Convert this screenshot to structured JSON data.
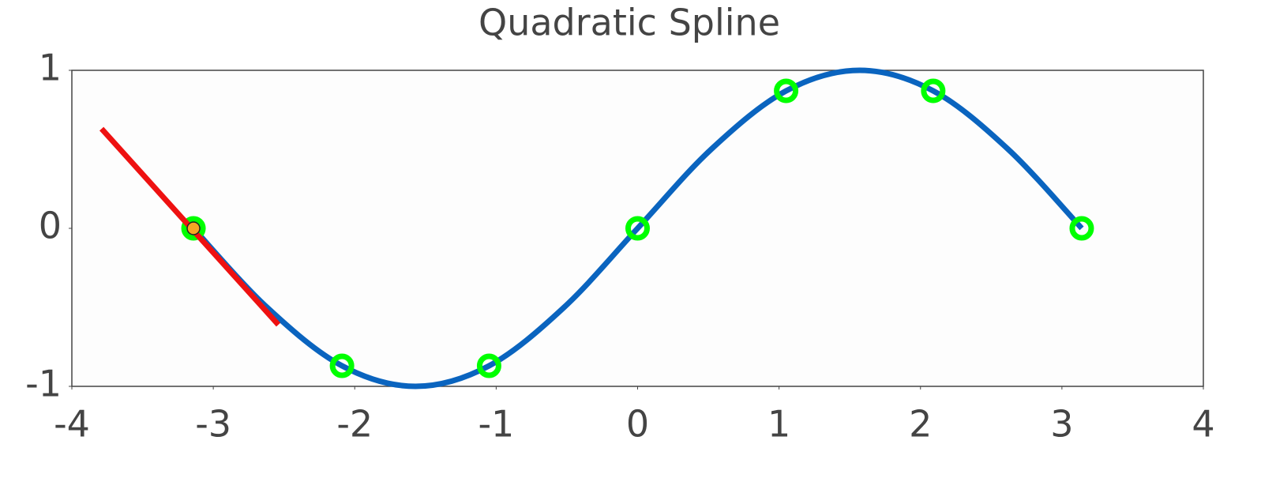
{
  "chart_data": {
    "type": "line",
    "title": "Quadratic Spline",
    "xlim": [
      -4,
      4
    ],
    "xticks": [
      -4,
      -3,
      -2,
      -1,
      0,
      1,
      2,
      3,
      4
    ],
    "ylim": [
      -1,
      1
    ],
    "yticks": [
      -1,
      0,
      1
    ],
    "series": [
      {
        "type": "line",
        "color": "#0a64bf",
        "x": [
          -3.14,
          -2.62,
          -2.09,
          -1.57,
          -1.05,
          -0.52,
          0,
          0.52,
          1.05,
          1.57,
          2.09,
          2.62,
          3.14
        ],
        "values": [
          0,
          -0.5,
          -0.87,
          -1,
          -0.87,
          -0.5,
          0,
          0.5,
          0.87,
          1,
          0.87,
          0.5,
          0
        ]
      },
      {
        "type": "scatter",
        "color": "#00ff00",
        "x": [
          -3.14,
          -2.09,
          -1.05,
          0,
          1.05,
          2.09,
          3.14
        ],
        "values": [
          0,
          -0.87,
          -0.87,
          0,
          0.87,
          0.87,
          0
        ]
      },
      {
        "type": "line",
        "color": "#ee1111",
        "x": [
          -3.79,
          -2.54
        ],
        "values": [
          0.63,
          -0.61
        ]
      },
      {
        "type": "point",
        "color": "#f5a623",
        "x": [
          -3.14
        ],
        "values": [
          0
        ]
      }
    ]
  }
}
